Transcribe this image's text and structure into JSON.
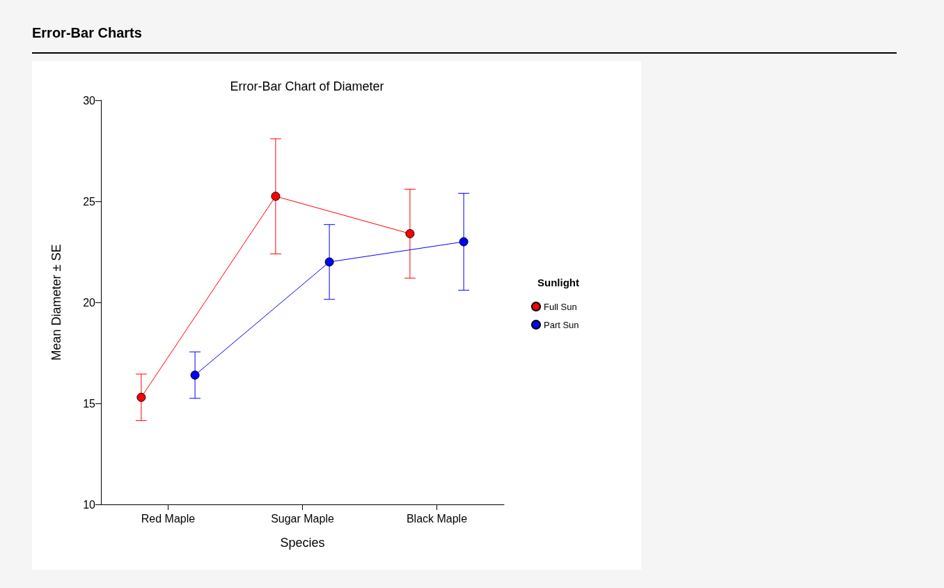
{
  "chart_data": {
    "type": "line",
    "title": "Error-Bar Chart of Diameter",
    "xlabel": "Species",
    "ylabel": "Mean Diameter ± SE",
    "legend_title": "Sunlight",
    "legend": "right",
    "marker": "circle",
    "line_style": "solid",
    "annotations": [
      "Error-Bar Charts"
    ],
    "categories": [
      "Red Maple",
      "Sugar Maple",
      "Black Maple"
    ],
    "ylim": [
      10,
      30
    ],
    "yticks": [
      10,
      15,
      20,
      25,
      30
    ],
    "series": [
      {
        "name": "Full Sun",
        "color": "#ff0000",
        "values": [
          15.3,
          25.25,
          23.4
        ],
        "errors": [
          1.15,
          2.85,
          2.2
        ]
      },
      {
        "name": "Part Sun",
        "color": "#0000ff",
        "values": [
          16.4,
          22.0,
          23.0
        ],
        "errors": [
          1.15,
          1.85,
          2.4
        ]
      }
    ]
  }
}
